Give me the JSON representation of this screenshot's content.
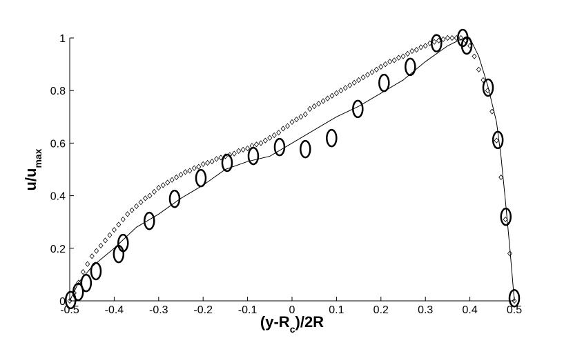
{
  "chart_data": {
    "type": "line",
    "x_label_parts": [
      "(y-R",
      "c",
      ")/2R"
    ],
    "y_label_parts": [
      "u/u",
      "max"
    ],
    "xlim": [
      -0.5,
      0.5
    ],
    "ylim": [
      0,
      1
    ],
    "xticks": [
      -0.5,
      -0.4,
      -0.3,
      -0.2,
      -0.1,
      0,
      0.1,
      0.2,
      0.3,
      0.4,
      0.5
    ],
    "yticks": [
      0,
      0.2,
      0.4,
      0.6,
      0.8,
      1
    ],
    "grid": false,
    "series": [
      {
        "marker": "diamond",
        "color": "#000000",
        "x": [
          -0.5,
          -0.49,
          -0.48,
          -0.47,
          -0.46,
          -0.45,
          -0.44,
          -0.43,
          -0.42,
          -0.41,
          -0.4,
          -0.39,
          -0.38,
          -0.37,
          -0.36,
          -0.35,
          -0.34,
          -0.33,
          -0.32,
          -0.31,
          -0.3,
          -0.29,
          -0.28,
          -0.27,
          -0.26,
          -0.25,
          -0.24,
          -0.23,
          -0.22,
          -0.21,
          -0.2,
          -0.19,
          -0.18,
          -0.17,
          -0.16,
          -0.15,
          -0.14,
          -0.13,
          -0.12,
          -0.11,
          -0.1,
          -0.09,
          -0.08,
          -0.07,
          -0.06,
          -0.05,
          -0.04,
          -0.03,
          -0.02,
          -0.01,
          0,
          0.01,
          0.02,
          0.03,
          0.04,
          0.05,
          0.06,
          0.07,
          0.08,
          0.09,
          0.1,
          0.11,
          0.12,
          0.13,
          0.14,
          0.15,
          0.16,
          0.17,
          0.18,
          0.19,
          0.2,
          0.21,
          0.22,
          0.23,
          0.24,
          0.25,
          0.26,
          0.27,
          0.28,
          0.29,
          0.3,
          0.31,
          0.32,
          0.33,
          0.34,
          0.35,
          0.36,
          0.37,
          0.38,
          0.39,
          0.4,
          0.41,
          0.42,
          0.43,
          0.44,
          0.45,
          0.46,
          0.47,
          0.48,
          0.49,
          0.5
        ],
        "values": [
          0,
          0.03,
          0.07,
          0.11,
          0.14,
          0.17,
          0.19,
          0.21,
          0.23,
          0.25,
          0.27,
          0.29,
          0.31,
          0.33,
          0.345,
          0.36,
          0.375,
          0.39,
          0.4,
          0.415,
          0.43,
          0.44,
          0.45,
          0.46,
          0.47,
          0.48,
          0.49,
          0.495,
          0.505,
          0.51,
          0.52,
          0.525,
          0.53,
          0.54,
          0.545,
          0.55,
          0.555,
          0.56,
          0.57,
          0.575,
          0.58,
          0.59,
          0.595,
          0.6,
          0.61,
          0.62,
          0.63,
          0.64,
          0.655,
          0.665,
          0.68,
          0.69,
          0.7,
          0.71,
          0.73,
          0.74,
          0.75,
          0.76,
          0.77,
          0.78,
          0.79,
          0.8,
          0.81,
          0.82,
          0.83,
          0.84,
          0.85,
          0.86,
          0.87,
          0.88,
          0.89,
          0.9,
          0.91,
          0.915,
          0.925,
          0.93,
          0.94,
          0.95,
          0.955,
          0.965,
          0.97,
          0.98,
          0.985,
          0.99,
          0.995,
          1,
          1,
          1,
          1,
          0.99,
          0.97,
          0.93,
          0.88,
          0.84,
          0.8,
          0.72,
          0.61,
          0.47,
          0.31,
          0.18,
          0
        ]
      },
      {
        "marker": "none",
        "color": "#000000",
        "x": [
          -0.5,
          -0.48,
          -0.45,
          -0.4,
          -0.35,
          -0.3,
          -0.25,
          -0.2,
          -0.15,
          -0.1,
          -0.05,
          0,
          0.05,
          0.1,
          0.15,
          0.2,
          0.25,
          0.3,
          0.35,
          0.38,
          0.4,
          0.42,
          0.44,
          0.46,
          0.47,
          0.48,
          0.49,
          0.5
        ],
        "values": [
          0,
          0.07,
          0.13,
          0.2,
          0.28,
          0.33,
          0.39,
          0.44,
          0.5,
          0.53,
          0.55,
          0.6,
          0.65,
          0.7,
          0.74,
          0.79,
          0.84,
          0.91,
          0.97,
          0.995,
          1,
          0.93,
          0.82,
          0.68,
          0.55,
          0.38,
          0.2,
          0
        ]
      },
      {
        "marker": "ellipse",
        "color": "#000000",
        "x": [
          -0.498,
          -0.481,
          -0.463,
          -0.441,
          -0.39,
          -0.38,
          -0.321,
          -0.264,
          -0.205,
          -0.146,
          -0.087,
          -0.028,
          0.03,
          0.089,
          0.148,
          0.207,
          0.266,
          0.325,
          0.384,
          0.393,
          0.441,
          0.463,
          0.481,
          0.5
        ],
        "values": [
          0.003,
          0.034,
          0.068,
          0.113,
          0.178,
          0.22,
          0.304,
          0.388,
          0.467,
          0.525,
          0.551,
          0.585,
          0.577,
          0.619,
          0.73,
          0.829,
          0.89,
          0.98,
          1,
          0.971,
          0.811,
          0.612,
          0.32,
          0.01
        ]
      }
    ]
  }
}
